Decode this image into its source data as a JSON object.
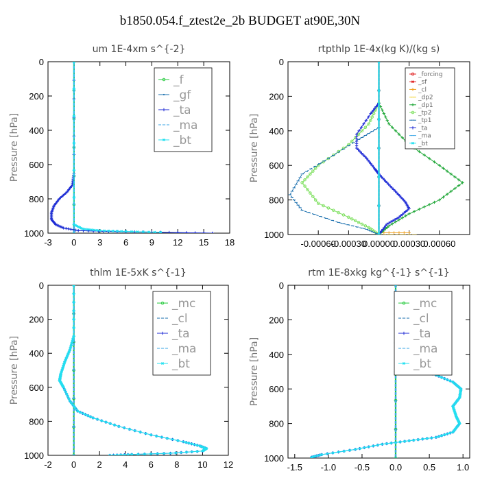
{
  "figure": {
    "title": "b1850.054.f_ztest2e_2b  BUDGET at90E,30N"
  },
  "chart_data": [
    {
      "type": "line",
      "title": "um  1E-4xm s^{-2}",
      "ylabel": "Pressure [hPa]",
      "xlim": [
        -3,
        18
      ],
      "ylim": [
        1000,
        0
      ],
      "xticks": [
        "-3",
        "0",
        "3",
        "6",
        "9",
        "12",
        "15",
        "18"
      ],
      "xtick_values": [
        -3,
        0,
        3,
        6,
        9,
        12,
        15,
        18
      ],
      "yticks": [
        "0",
        "200",
        "400",
        "600",
        "800",
        "1000"
      ],
      "ytick_values": [
        0,
        200,
        400,
        600,
        800,
        1000
      ],
      "legend": {
        "position": "top-right",
        "size": "large"
      },
      "series": [
        {
          "name": "_f",
          "color": "#22c93a",
          "marker": "circle",
          "legend": true,
          "points": [
            [
              0,
              0
            ],
            [
              0,
              1000
            ]
          ]
        },
        {
          "name": "_gf",
          "color": "#1a6fae",
          "marker": "dot",
          "legend": true,
          "points": [
            [
              0,
              0
            ],
            [
              0,
              650
            ],
            [
              -0.2,
              720
            ],
            [
              -0.8,
              760
            ],
            [
              -1.7,
              800
            ],
            [
              -2.3,
              840
            ],
            [
              -2.6,
              880
            ],
            [
              -2.6,
              920
            ],
            [
              -2.1,
              950
            ],
            [
              -1.2,
              970
            ],
            [
              0.5,
              985
            ],
            [
              4,
              990
            ],
            [
              10,
              995
            ],
            [
              16,
              1000
            ]
          ]
        },
        {
          "name": "_ta",
          "color": "#1f2bd6",
          "marker": "plus",
          "legend": true,
          "points": [
            [
              0,
              0
            ],
            [
              0,
              650
            ],
            [
              -0.2,
              720
            ],
            [
              -0.8,
              760
            ],
            [
              -1.7,
              800
            ],
            [
              -2.3,
              840
            ],
            [
              -2.6,
              880
            ],
            [
              -2.6,
              920
            ],
            [
              -2.1,
              950
            ],
            [
              -1.2,
              970
            ],
            [
              0.5,
              985
            ],
            [
              4,
              990
            ],
            [
              10,
              995
            ],
            [
              16,
              1000
            ]
          ]
        },
        {
          "name": "_ma",
          "color": "#3aa6e6",
          "marker": "dash",
          "legend": true,
          "points": [
            [
              0,
              0
            ],
            [
              0,
              1000
            ]
          ]
        },
        {
          "name": "_bt",
          "color": "#22e0f0",
          "marker": "star",
          "legend": true,
          "points": [
            [
              0,
              0
            ],
            [
              0,
              950
            ],
            [
              1,
              975
            ],
            [
              3,
              985
            ],
            [
              6,
              990
            ],
            [
              10,
              995
            ]
          ]
        }
      ]
    },
    {
      "type": "line",
      "title": "rtpthlp  1E-4x(kg K)/(kg s)",
      "ylabel": "Pressure [hPa]",
      "xlim": [
        -0.0009,
        0.0009
      ],
      "ylim": [
        1000,
        0
      ],
      "xticks": [
        "-0.00060",
        "-0.00030",
        "0.00000",
        "0.00030",
        "0.00060"
      ],
      "xtick_values": [
        -0.0006,
        -0.0003,
        0,
        0.0003,
        0.0006
      ],
      "yticks": [
        "0",
        "200",
        "400",
        "600",
        "800",
        "1000"
      ],
      "ytick_values": [
        0,
        200,
        400,
        600,
        800,
        1000
      ],
      "legend": {
        "position": "top-right",
        "size": "small"
      },
      "series": [
        {
          "name": "_forcing",
          "color": "#e02020",
          "marker": "circle",
          "legend": true,
          "points": [
            [
              0,
              0
            ],
            [
              0,
              1000
            ]
          ]
        },
        {
          "name": "_sf",
          "color": "#e02020",
          "marker": "star",
          "legend": true,
          "points": [
            [
              0,
              0
            ],
            [
              0,
              1000
            ]
          ]
        },
        {
          "name": "_cl",
          "color": "#f0a020",
          "marker": "plus",
          "legend": true,
          "points": [
            [
              0,
              990
            ],
            [
              0.0003,
              990
            ]
          ]
        },
        {
          "name": "_dp2",
          "color": "#f0d020",
          "marker": "dash",
          "legend": true,
          "points": [
            [
              0,
              1000
            ],
            [
              0.00036,
              1000
            ]
          ]
        },
        {
          "name": "_dp1",
          "color": "#22a83a",
          "marker": "plus",
          "legend": true,
          "points": [
            [
              0,
              240
            ],
            [
              0.0001,
              360
            ],
            [
              0.0003,
              480
            ],
            [
              0.0006,
              600
            ],
            [
              0.00083,
              700
            ],
            [
              0.0006,
              800
            ],
            [
              0.0003,
              880
            ],
            [
              0.0001,
              950
            ],
            [
              0,
              1000
            ]
          ]
        },
        {
          "name": "_tp2",
          "color": "#7adf5a",
          "marker": "circle",
          "legend": true,
          "points": [
            [
              0,
              240
            ],
            [
              -0.0001,
              360
            ],
            [
              -0.0003,
              480
            ],
            [
              -0.0006,
              600
            ],
            [
              -0.00076,
              700
            ],
            [
              -0.0006,
              820
            ],
            [
              -0.0003,
              900
            ],
            [
              -0.0001,
              960
            ],
            [
              0,
              1000
            ]
          ]
        },
        {
          "name": "_tp1",
          "color": "#1a6fae",
          "marker": "dash",
          "legend": true,
          "points": [
            [
              0,
              380
            ],
            [
              -0.0002,
              450
            ],
            [
              -0.0005,
              560
            ],
            [
              -0.00076,
              650
            ],
            [
              -0.00088,
              770
            ],
            [
              -0.00076,
              860
            ],
            [
              -0.0004,
              930
            ],
            [
              -0.00012,
              970
            ],
            [
              0,
              1000
            ]
          ]
        },
        {
          "name": "_ta",
          "color": "#1f2bd6",
          "marker": "plus",
          "legend": true,
          "points": [
            [
              0,
              240
            ],
            [
              -8e-05,
              300
            ],
            [
              -0.00022,
              420
            ],
            [
              -0.00022,
              500
            ],
            [
              -0.00012,
              560
            ],
            [
              -4e-05,
              620
            ],
            [
              0,
              650
            ],
            [
              8e-05,
              700
            ],
            [
              0.00018,
              760
            ],
            [
              0.00026,
              810
            ],
            [
              0.0003,
              850
            ],
            [
              0.0002,
              900
            ],
            [
              8e-05,
              940
            ],
            [
              0,
              1000
            ]
          ]
        },
        {
          "name": "_ma",
          "color": "#3aa6e6",
          "marker": "dash",
          "legend": true,
          "points": [
            [
              0,
              0
            ],
            [
              0,
              1000
            ]
          ]
        },
        {
          "name": "_bt",
          "color": "#22e0f0",
          "marker": "star",
          "legend": true,
          "points": [
            [
              0,
              0
            ],
            [
              0,
              1000
            ]
          ]
        }
      ]
    },
    {
      "type": "line",
      "title": "thlm  1E-5xK s^{-1}",
      "ylabel": "Pressure [hPa]",
      "xlim": [
        -2,
        12
      ],
      "ylim": [
        1000,
        0
      ],
      "xticks": [
        "-2",
        "0",
        "2",
        "4",
        "6",
        "8",
        "10",
        "12"
      ],
      "xtick_values": [
        -2,
        0,
        2,
        4,
        6,
        8,
        10,
        12
      ],
      "yticks": [
        "0",
        "200",
        "400",
        "600",
        "800",
        "1000"
      ],
      "ytick_values": [
        0,
        200,
        400,
        600,
        800,
        1000
      ],
      "legend": {
        "position": "top-right",
        "size": "large"
      },
      "series": [
        {
          "name": "_mc",
          "color": "#22c93a",
          "marker": "circle",
          "legend": true,
          "points": [
            [
              0,
              0
            ],
            [
              0,
              1000
            ]
          ]
        },
        {
          "name": "_cl",
          "color": "#1a6fae",
          "marker": "dash",
          "legend": true,
          "points": [
            [
              0,
              0
            ],
            [
              0,
              1000
            ]
          ]
        },
        {
          "name": "_ta",
          "color": "#1f2bd6",
          "marker": "plus",
          "legend": true,
          "points": [
            [
              0,
              0
            ],
            [
              0,
              300
            ],
            [
              -0.3,
              380
            ],
            [
              -0.7,
              450
            ],
            [
              -1,
              520
            ],
            [
              -1.1,
              560
            ],
            [
              -0.8,
              600
            ],
            [
              -0.3,
              680
            ],
            [
              0.3,
              740
            ],
            [
              1.5,
              780
            ],
            [
              3.5,
              830
            ],
            [
              6,
              880
            ],
            [
              8.5,
              920
            ],
            [
              9.8,
              945
            ],
            [
              10.3,
              960
            ],
            [
              10,
              975
            ],
            [
              7.5,
              988
            ],
            [
              4.5,
              995
            ],
            [
              2.8,
              1000
            ]
          ]
        },
        {
          "name": "_ma",
          "color": "#3aa6e6",
          "marker": "dash",
          "legend": true,
          "points": [
            [
              0,
              0
            ],
            [
              0,
              1000
            ]
          ]
        },
        {
          "name": "_bt",
          "color": "#22e0f0",
          "marker": "star",
          "legend": true,
          "points": [
            [
              0,
              0
            ],
            [
              0,
              300
            ],
            [
              -0.3,
              380
            ],
            [
              -0.7,
              450
            ],
            [
              -1,
              520
            ],
            [
              -1.1,
              560
            ],
            [
              -0.8,
              600
            ],
            [
              -0.3,
              680
            ],
            [
              0.3,
              740
            ],
            [
              1.5,
              780
            ],
            [
              3.5,
              830
            ],
            [
              6,
              880
            ],
            [
              8.5,
              920
            ],
            [
              9.8,
              945
            ],
            [
              10.3,
              960
            ],
            [
              10,
              975
            ],
            [
              7.5,
              988
            ],
            [
              4.5,
              995
            ],
            [
              2.8,
              1000
            ]
          ]
        }
      ]
    },
    {
      "type": "line",
      "title": "rtm  1E-8xkg kg^{-1} s^{-1}",
      "ylabel": "Pressure [hPa]",
      "xlim": [
        -1.6,
        1.1
      ],
      "ylim": [
        1000,
        0
      ],
      "xticks": [
        "-1.5",
        "-1.0",
        "-0.5",
        "0.0",
        "0.5",
        "1.0"
      ],
      "xtick_values": [
        -1.5,
        -1.0,
        -0.5,
        0.0,
        0.5,
        1.0
      ],
      "yticks": [
        "0",
        "200",
        "400",
        "600",
        "800",
        "1000"
      ],
      "ytick_values": [
        0,
        200,
        400,
        600,
        800,
        1000
      ],
      "legend": {
        "position": "top-right",
        "size": "large"
      },
      "series": [
        {
          "name": "_mc",
          "color": "#22c93a",
          "marker": "circle",
          "legend": true,
          "points": [
            [
              0,
              0
            ],
            [
              0,
              1000
            ]
          ]
        },
        {
          "name": "_cl",
          "color": "#1a6fae",
          "marker": "dash",
          "legend": true,
          "points": [
            [
              0,
              0
            ],
            [
              0,
              1000
            ]
          ]
        },
        {
          "name": "_ta",
          "color": "#1f2bd6",
          "marker": "plus",
          "legend": true,
          "points": [
            [
              0,
              100
            ],
            [
              0.02,
              200
            ],
            [
              0.06,
              300
            ],
            [
              0.12,
              400
            ],
            [
              0.3,
              480
            ],
            [
              0.6,
              520
            ],
            [
              0.85,
              560
            ],
            [
              0.97,
              600
            ],
            [
              0.95,
              650
            ],
            [
              0.85,
              700
            ],
            [
              0.9,
              760
            ],
            [
              0.95,
              800
            ],
            [
              0.85,
              850
            ],
            [
              0.6,
              880
            ],
            [
              0.2,
              900
            ],
            [
              -0.2,
              920
            ],
            [
              -0.6,
              950
            ],
            [
              -1.1,
              980
            ],
            [
              -1.25,
              995
            ]
          ]
        },
        {
          "name": "_ma",
          "color": "#3aa6e6",
          "marker": "dash",
          "legend": true,
          "points": [
            [
              0,
              0
            ],
            [
              0,
              1000
            ]
          ]
        },
        {
          "name": "_bt",
          "color": "#22e0f0",
          "marker": "star",
          "legend": true,
          "points": [
            [
              0,
              100
            ],
            [
              0.02,
              200
            ],
            [
              0.06,
              300
            ],
            [
              0.12,
              400
            ],
            [
              0.3,
              480
            ],
            [
              0.6,
              520
            ],
            [
              0.85,
              560
            ],
            [
              0.97,
              600
            ],
            [
              0.95,
              650
            ],
            [
              0.85,
              700
            ],
            [
              0.9,
              760
            ],
            [
              0.95,
              800
            ],
            [
              0.85,
              850
            ],
            [
              0.6,
              880
            ],
            [
              0.2,
              900
            ],
            [
              -0.2,
              920
            ],
            [
              -0.6,
              950
            ],
            [
              -1.1,
              980
            ],
            [
              -1.25,
              995
            ]
          ]
        }
      ]
    }
  ]
}
